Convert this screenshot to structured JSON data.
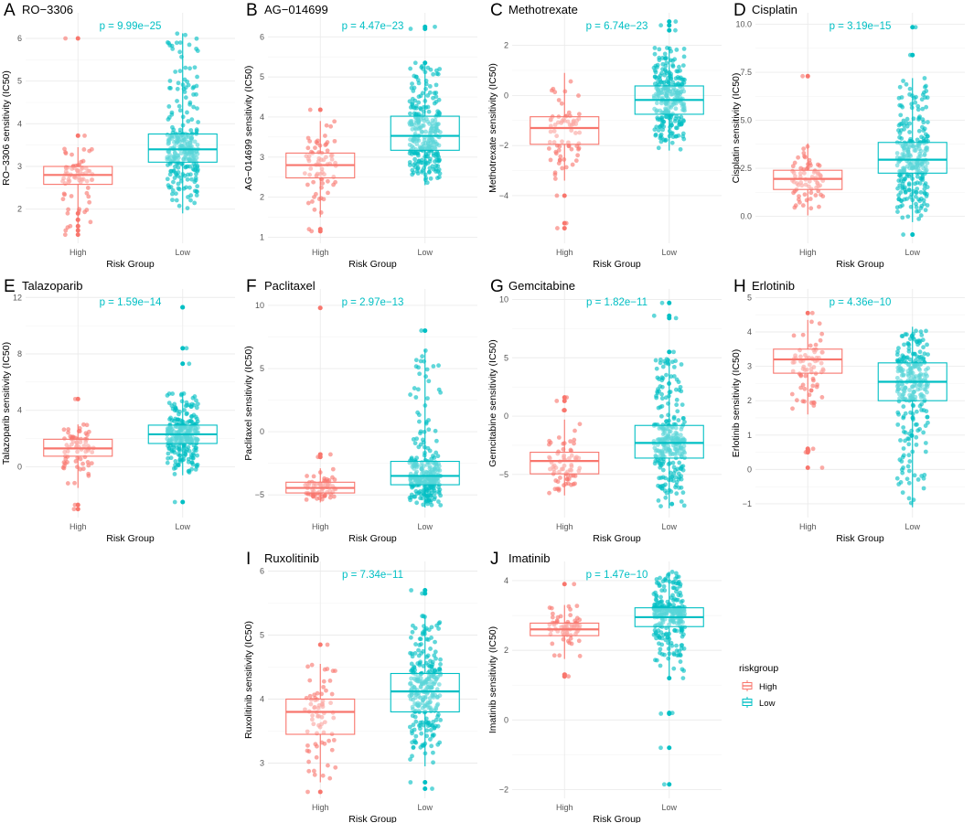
{
  "colors": {
    "high": "#F8766D",
    "low": "#00BFC4",
    "grid": "#EBEBEB"
  },
  "legend": {
    "title": "riskgroup",
    "items": [
      "High",
      "Low"
    ]
  },
  "chart_data": [
    {
      "type": "boxplot",
      "panel": "A",
      "title": "RO−3306",
      "p_label": "p = 9.99e−25",
      "xlabel": "Risk Group",
      "ylabel": "RO−3306 sensitivity (IC50)",
      "categories": [
        "High",
        "Low"
      ],
      "ylim": [
        1.2,
        6.6
      ],
      "yticks": [
        2,
        3,
        4,
        5,
        6
      ],
      "series": [
        {
          "name": "High",
          "min": 1.35,
          "q1": 2.58,
          "median": 2.8,
          "q3": 3.0,
          "max": 3.45,
          "outliers": [
            6.0,
            3.72,
            1.9,
            1.75,
            1.6,
            1.5,
            1.4
          ]
        },
        {
          "name": "Low",
          "min": 1.9,
          "q1": 3.1,
          "median": 3.4,
          "q3": 3.76,
          "max": 6.12,
          "outliers": []
        }
      ]
    },
    {
      "type": "boxplot",
      "panel": "B",
      "title": "AG−014699",
      "p_label": "p = 4.47e−23",
      "xlabel": "Risk Group",
      "ylabel": "AG−014699 sensitivity (IC50)",
      "categories": [
        "High",
        "Low"
      ],
      "ylim": [
        0.85,
        6.6
      ],
      "yticks": [
        1,
        2,
        3,
        4,
        5,
        6
      ],
      "series": [
        {
          "name": "High",
          "min": 1.5,
          "q1": 2.48,
          "median": 2.8,
          "q3": 3.1,
          "max": 3.9,
          "outliers": [
            4.18,
            1.2,
            1.15
          ]
        },
        {
          "name": "Low",
          "min": 2.3,
          "q1": 3.17,
          "median": 3.53,
          "q3": 4.02,
          "max": 5.3,
          "outliers": [
            6.25,
            6.2,
            5.35
          ]
        }
      ]
    },
    {
      "type": "boxplot",
      "panel": "C",
      "title": "Methotrexate",
      "p_label": "p = 6.74e−23",
      "xlabel": "Risk Group",
      "ylabel": "Methotrexate sensitivity (IC50)",
      "categories": [
        "High",
        "Low"
      ],
      "ylim": [
        -5.9,
        3.3
      ],
      "yticks": [
        -4,
        -2,
        0,
        2
      ],
      "series": [
        {
          "name": "High",
          "min": -3.4,
          "q1": -1.95,
          "median": -1.3,
          "q3": -0.85,
          "max": 0.9,
          "outliers": [
            -4.0,
            -5.1,
            -5.3
          ]
        },
        {
          "name": "Low",
          "min": -2.2,
          "q1": -0.75,
          "median": -0.18,
          "q3": 0.38,
          "max": 1.95,
          "outliers": [
            2.95,
            2.8,
            2.6
          ]
        }
      ]
    },
    {
      "type": "boxplot",
      "panel": "D",
      "title": "Cisplatin",
      "p_label": "p = 3.19e−15",
      "xlabel": "Risk Group",
      "ylabel": "Cisplatin sensitivity (IC50)",
      "categories": [
        "High",
        "Low"
      ],
      "ylim": [
        -1.4,
        10.6
      ],
      "yticks": [
        0.0,
        2.5,
        5.0,
        7.5,
        10.0
      ],
      "ytick_labels": [
        "0.0",
        "2.5",
        "5.0",
        "7.5",
        "10.0"
      ],
      "series": [
        {
          "name": "High",
          "min": 0.05,
          "q1": 1.4,
          "median": 1.95,
          "q3": 2.4,
          "max": 3.8,
          "outliers": [
            7.3
          ]
        },
        {
          "name": "Low",
          "min": -0.3,
          "q1": 2.25,
          "median": 2.95,
          "q3": 3.85,
          "max": 7.2,
          "outliers": [
            9.85,
            8.4,
            -0.95
          ]
        }
      ]
    },
    {
      "type": "boxplot",
      "panel": "E",
      "title": "Talazoparib",
      "p_label": "p = 1.59e−14",
      "xlabel": "Risk Group",
      "ylabel": "Talazoparib sensitivity (IC50)",
      "categories": [
        "High",
        "Low"
      ],
      "ylim": [
        -3.6,
        12.6
      ],
      "yticks": [
        0,
        4,
        8,
        12
      ],
      "series": [
        {
          "name": "High",
          "min": -1.5,
          "q1": 0.75,
          "median": 1.3,
          "q3": 1.95,
          "max": 3.0,
          "outliers": [
            4.8,
            -2.7,
            -3.0
          ]
        },
        {
          "name": "Low",
          "min": -0.6,
          "q1": 1.65,
          "median": 2.3,
          "q3": 2.95,
          "max": 5.2,
          "outliers": [
            11.3,
            8.4,
            7.3,
            -2.5
          ]
        }
      ]
    },
    {
      "type": "boxplot",
      "panel": "F",
      "title": "Paclitaxel",
      "p_label": "p = 2.97e−13",
      "xlabel": "Risk Group",
      "ylabel": "Paclitaxel sensitivity (IC50)",
      "categories": [
        "High",
        "Low"
      ],
      "ylim": [
        -6.8,
        11.3
      ],
      "yticks": [
        -5,
        0,
        5,
        10
      ],
      "series": [
        {
          "name": "High",
          "min": -5.6,
          "q1": -4.85,
          "median": -4.45,
          "q3": -4.0,
          "max": -2.9,
          "outliers": [
            9.8,
            -1.8,
            -2.0
          ]
        },
        {
          "name": "Low",
          "min": -6.0,
          "q1": -4.2,
          "median": -3.5,
          "q3": -2.35,
          "max": 6.5,
          "outliers": [
            8.0
          ]
        }
      ]
    },
    {
      "type": "boxplot",
      "panel": "G",
      "title": "Gemcitabine",
      "p_label": "p = 1.82e−11",
      "xlabel": "Risk Group",
      "ylabel": "Gemcitabine sensitivity (IC50)",
      "categories": [
        "High",
        "Low"
      ],
      "ylim": [
        -8.7,
        10.9
      ],
      "yticks": [
        -5,
        0,
        5,
        10
      ],
      "series": [
        {
          "name": "High",
          "min": -6.8,
          "q1": -4.95,
          "median": -3.85,
          "q3": -3.1,
          "max": -0.3,
          "outliers": [
            1.6,
            1.3,
            0.5
          ]
        },
        {
          "name": "Low",
          "min": -7.9,
          "q1": -3.6,
          "median": -2.3,
          "q3": -0.8,
          "max": 4.9,
          "outliers": [
            9.7,
            8.6,
            8.4,
            5.5
          ]
        }
      ]
    },
    {
      "type": "boxplot",
      "panel": "H",
      "title": "Erlotinib",
      "p_label": "p = 4.36e−10",
      "xlabel": "Risk Group",
      "ylabel": "Erlotinib sensitivity (IC50)",
      "categories": [
        "High",
        "Low"
      ],
      "ylim": [
        -1.4,
        5.25
      ],
      "yticks": [
        -1,
        0,
        1,
        2,
        3,
        4,
        5
      ],
      "series": [
        {
          "name": "High",
          "min": 1.6,
          "q1": 2.8,
          "median": 3.2,
          "q3": 3.5,
          "max": 4.35,
          "outliers": [
            4.55,
            0.6,
            0.55,
            0.5,
            0.05
          ]
        },
        {
          "name": "Low",
          "min": -1.1,
          "q1": 2.0,
          "median": 2.55,
          "q3": 3.1,
          "max": 4.15,
          "outliers": []
        }
      ]
    },
    {
      "type": "boxplot",
      "panel": "I",
      "title": "Ruxolitinib",
      "p_label": "p = 7.34e−11",
      "xlabel": "Risk Group",
      "ylabel": "Ruxolitinib sensitivity (IC50)",
      "categories": [
        "High",
        "Low"
      ],
      "ylim": [
        2.45,
        6.15
      ],
      "yticks": [
        3,
        4,
        5,
        6
      ],
      "series": [
        {
          "name": "High",
          "min": 2.7,
          "q1": 3.45,
          "median": 3.8,
          "q3": 4.0,
          "max": 4.55,
          "outliers": [
            4.85,
            2.55
          ]
        },
        {
          "name": "Low",
          "min": 2.95,
          "q1": 3.8,
          "median": 4.12,
          "q3": 4.4,
          "max": 5.3,
          "outliers": [
            5.7,
            5.65,
            2.6,
            2.7
          ]
        }
      ]
    },
    {
      "type": "boxplot",
      "panel": "J",
      "title": "Imatinib",
      "p_label": "p = 1.47e−10",
      "xlabel": "Risk Group",
      "ylabel": "Imatinib sensitivity (IC50)",
      "categories": [
        "High",
        "Low"
      ],
      "ylim": [
        -2.25,
        4.55
      ],
      "yticks": [
        -2,
        0,
        2,
        4
      ],
      "series": [
        {
          "name": "High",
          "min": 1.75,
          "q1": 2.42,
          "median": 2.6,
          "q3": 2.78,
          "max": 3.3,
          "outliers": [
            3.9,
            1.3,
            1.25
          ]
        },
        {
          "name": "Low",
          "min": 1.25,
          "q1": 2.68,
          "median": 2.95,
          "q3": 3.22,
          "max": 4.25,
          "outliers": [
            1.2,
            0.2,
            0.18,
            -0.8,
            -1.85
          ]
        }
      ]
    }
  ]
}
